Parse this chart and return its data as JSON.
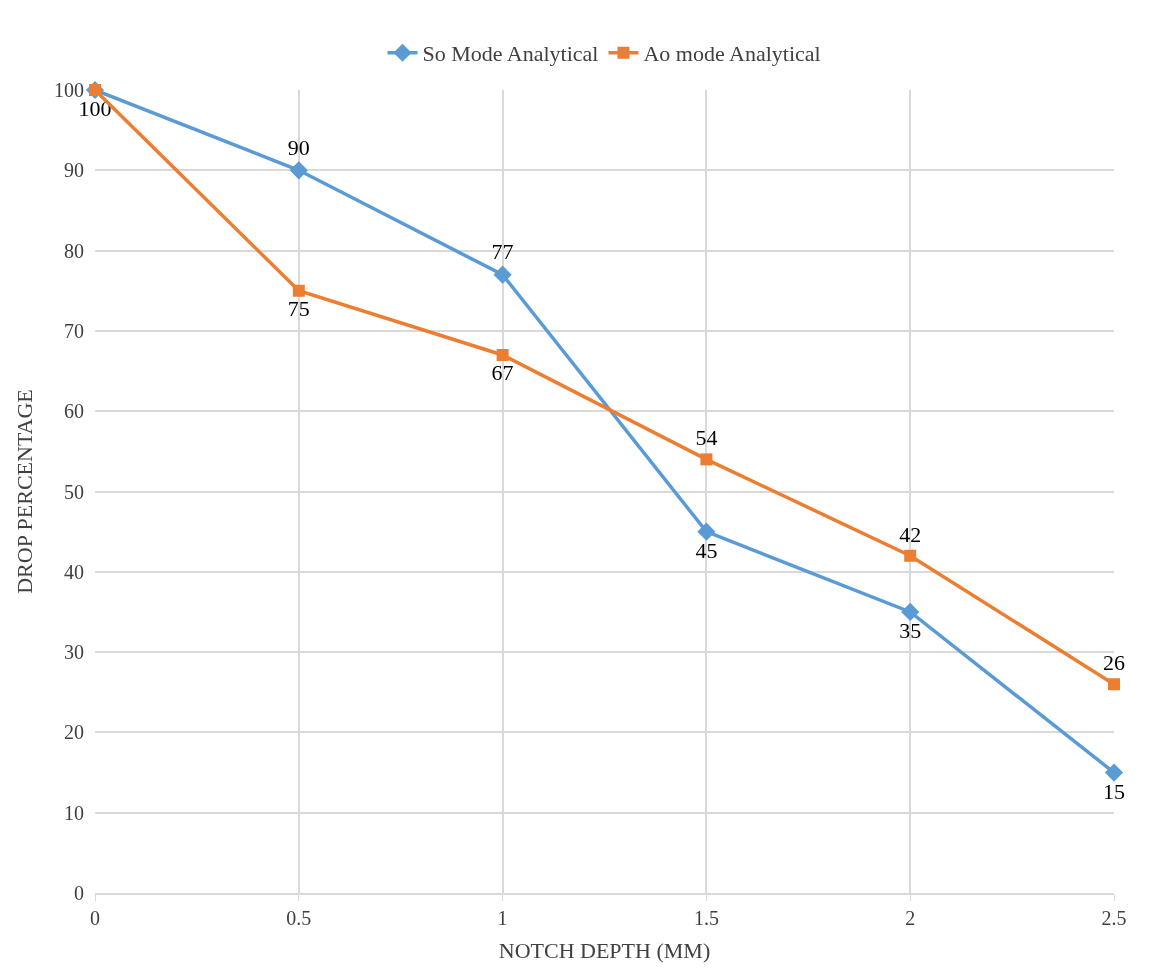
{
  "chart_data": {
    "type": "line",
    "xlabel": "NOTCH DEPTH (MM)",
    "ylabel": "DROP PERCENTAGE",
    "x": [
      0,
      0.5,
      1,
      1.5,
      2,
      2.5
    ],
    "series": [
      {
        "name": "So Mode Analytical",
        "color": "#5b9bd5",
        "marker": "diamond",
        "values": [
          100,
          90,
          77,
          45,
          35,
          15
        ],
        "value_labels": [
          "100",
          "90",
          "77",
          "45",
          "35",
          "15"
        ]
      },
      {
        "name": "Ao mode Analytical",
        "color": "#ed7d31",
        "marker": "square",
        "values": [
          100,
          75,
          67,
          54,
          42,
          26
        ],
        "value_labels": [
          null,
          "75",
          "67",
          "54",
          "42",
          "26"
        ]
      }
    ],
    "xlim": [
      0,
      2.5
    ],
    "xticks": [
      0,
      0.5,
      1,
      1.5,
      2,
      2.5
    ],
    "ylim": [
      0,
      100
    ],
    "yticks": [
      0,
      10,
      20,
      30,
      40,
      50,
      60,
      70,
      80,
      90,
      100
    ],
    "grid": true,
    "legend": "top",
    "line_style": "solid"
  }
}
